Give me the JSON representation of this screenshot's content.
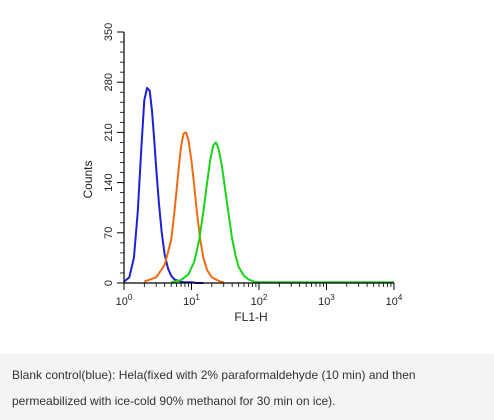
{
  "chart_data": {
    "type": "line",
    "title": "",
    "xlabel": "FL1-H",
    "ylabel": "Counts",
    "x_scale": "log",
    "xlim": [
      1,
      10000
    ],
    "ylim": [
      0,
      350
    ],
    "x_ticks": [
      {
        "value": 1,
        "base": "10",
        "exp": "0"
      },
      {
        "value": 10,
        "base": "10",
        "exp": "1"
      },
      {
        "value": 100,
        "base": "10",
        "exp": "2"
      },
      {
        "value": 1000,
        "base": "10",
        "exp": "3"
      },
      {
        "value": 10000,
        "base": "10",
        "exp": "4"
      }
    ],
    "y_ticks": [
      0,
      70,
      140,
      210,
      280,
      350
    ],
    "grid": false,
    "legend": "none",
    "series": [
      {
        "color": "#1f1fd6",
        "x": [
          1.0,
          1.2,
          1.4,
          1.6,
          1.8,
          2.0,
          2.2,
          2.4,
          2.6,
          2.8,
          3.0,
          3.3,
          3.6,
          4.0,
          4.5,
          5.0,
          5.6,
          6.3,
          7.0,
          8.0,
          9.0,
          10.0,
          12.0,
          15.0
        ],
        "values": [
          2,
          8,
          35,
          100,
          185,
          255,
          272,
          268,
          240,
          200,
          160,
          110,
          72,
          40,
          20,
          10,
          5,
          3,
          2,
          1,
          1,
          1,
          0,
          0
        ]
      },
      {
        "color": "#f06a14",
        "x": [
          2.0,
          3.0,
          4.0,
          5.0,
          5.6,
          6.3,
          7.0,
          7.6,
          8.3,
          9.0,
          10.0,
          11.0,
          12.0,
          13.5,
          15.0,
          17.0,
          20.0,
          25.0,
          30.0
        ],
        "values": [
          2,
          8,
          25,
          60,
          100,
          150,
          190,
          208,
          210,
          200,
          170,
          135,
          100,
          60,
          35,
          18,
          8,
          3,
          1
        ]
      },
      {
        "color": "#1ad41a",
        "x": [
          5.0,
          7.0,
          9.0,
          11.0,
          13.0,
          15.0,
          17.0,
          19.0,
          21.0,
          23.0,
          25.0,
          28.0,
          31.0,
          35.0,
          40.0,
          45.0,
          50.0,
          60.0,
          70.0,
          85.0,
          100.0,
          10000.0
        ],
        "values": [
          1,
          4,
          12,
          30,
          60,
          100,
          140,
          172,
          192,
          196,
          188,
          165,
          135,
          100,
          62,
          38,
          22,
          10,
          5,
          2,
          1,
          1
        ]
      }
    ]
  },
  "caption": "Blank control(blue): Hela(fixed with 2% paraformaldehyde (10 min) and then permeabilized with ice-cold 90% methanol for 30 min on ice)."
}
